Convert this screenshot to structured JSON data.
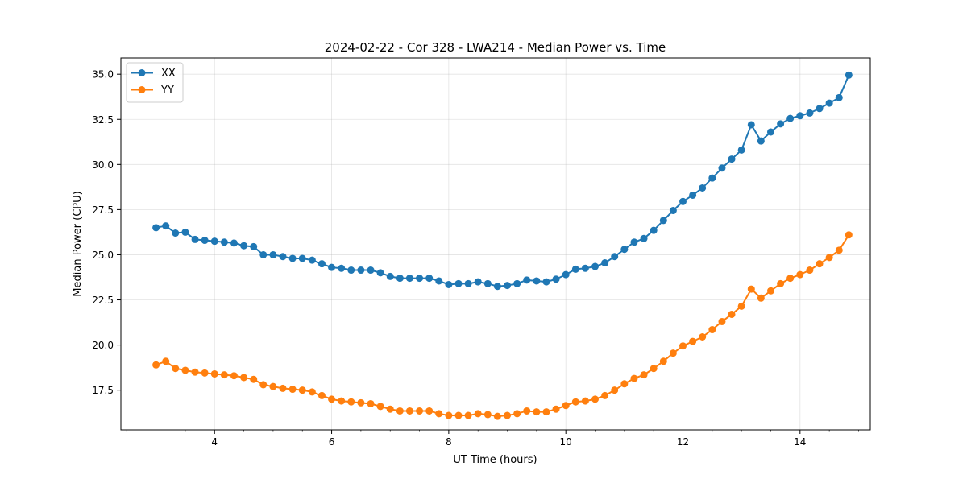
{
  "chart_data": {
    "type": "line",
    "title": "2024-02-22 - Cor 328 - LWA214 - Median Power vs. Time",
    "xlabel": "UT Time (hours)",
    "ylabel": "Median Power (CPU)",
    "xlim": [
      2.4,
      15.2
    ],
    "ylim": [
      15.3,
      35.9
    ],
    "x_ticks": [
      4,
      6,
      8,
      10,
      12,
      14
    ],
    "y_ticks": [
      17.5,
      20.0,
      22.5,
      25.0,
      27.5,
      30.0,
      32.5,
      35.0
    ],
    "x_tick_labels": [
      "4",
      "6",
      "8",
      "10",
      "12",
      "14"
    ],
    "y_tick_labels": [
      "17.5",
      "20.0",
      "22.5",
      "25.0",
      "27.5",
      "30.0",
      "32.5",
      "35.0"
    ],
    "grid": true,
    "legend_position": "top-left",
    "x": [
      3.0,
      3.167,
      3.333,
      3.5,
      3.667,
      3.833,
      4.0,
      4.167,
      4.333,
      4.5,
      4.667,
      4.833,
      5.0,
      5.167,
      5.333,
      5.5,
      5.667,
      5.833,
      6.0,
      6.167,
      6.333,
      6.5,
      6.667,
      6.833,
      7.0,
      7.167,
      7.333,
      7.5,
      7.667,
      7.833,
      8.0,
      8.167,
      8.333,
      8.5,
      8.667,
      8.833,
      9.0,
      9.167,
      9.333,
      9.5,
      9.667,
      9.833,
      10.0,
      10.167,
      10.333,
      10.5,
      10.667,
      10.833,
      11.0,
      11.167,
      11.333,
      11.5,
      11.667,
      11.833,
      12.0,
      12.167,
      12.333,
      12.5,
      12.667,
      12.833,
      13.0,
      13.167,
      13.333,
      13.5,
      13.667,
      13.833,
      14.0,
      14.167,
      14.333,
      14.5,
      14.667,
      14.833
    ],
    "series": [
      {
        "name": "XX",
        "color": "#1f77b4",
        "values": [
          26.5,
          26.6,
          26.2,
          26.25,
          25.85,
          25.8,
          25.75,
          25.7,
          25.65,
          25.5,
          25.45,
          25.0,
          25.0,
          24.9,
          24.8,
          24.8,
          24.7,
          24.5,
          24.3,
          24.25,
          24.15,
          24.15,
          24.15,
          24.0,
          23.8,
          23.7,
          23.7,
          23.7,
          23.7,
          23.55,
          23.35,
          23.4,
          23.4,
          23.5,
          23.4,
          23.25,
          23.3,
          23.4,
          23.6,
          23.55,
          23.5,
          23.65,
          23.9,
          24.2,
          24.25,
          24.35,
          24.55,
          24.9,
          25.3,
          25.7,
          25.9,
          26.35,
          26.9,
          27.45,
          27.95,
          28.3,
          28.7,
          29.25,
          29.8,
          30.3,
          30.8,
          32.2,
          31.3,
          31.8,
          32.25,
          32.55,
          32.7,
          32.85,
          33.1,
          33.4,
          33.7,
          34.95
        ]
      },
      {
        "name": "YY",
        "color": "#ff7f0e",
        "values": [
          18.9,
          19.1,
          18.7,
          18.6,
          18.5,
          18.45,
          18.4,
          18.35,
          18.3,
          18.2,
          18.1,
          17.8,
          17.7,
          17.6,
          17.55,
          17.5,
          17.4,
          17.2,
          17.0,
          16.9,
          16.85,
          16.8,
          16.75,
          16.6,
          16.45,
          16.35,
          16.35,
          16.35,
          16.35,
          16.2,
          16.1,
          16.1,
          16.1,
          16.2,
          16.15,
          16.05,
          16.1,
          16.2,
          16.35,
          16.3,
          16.3,
          16.45,
          16.65,
          16.85,
          16.9,
          17.0,
          17.2,
          17.5,
          17.85,
          18.15,
          18.35,
          18.7,
          19.1,
          19.55,
          19.95,
          20.2,
          20.45,
          20.85,
          21.3,
          21.7,
          22.15,
          23.1,
          22.6,
          23.0,
          23.4,
          23.7,
          23.9,
          24.15,
          24.5,
          24.85,
          25.25,
          26.1
        ]
      }
    ]
  }
}
